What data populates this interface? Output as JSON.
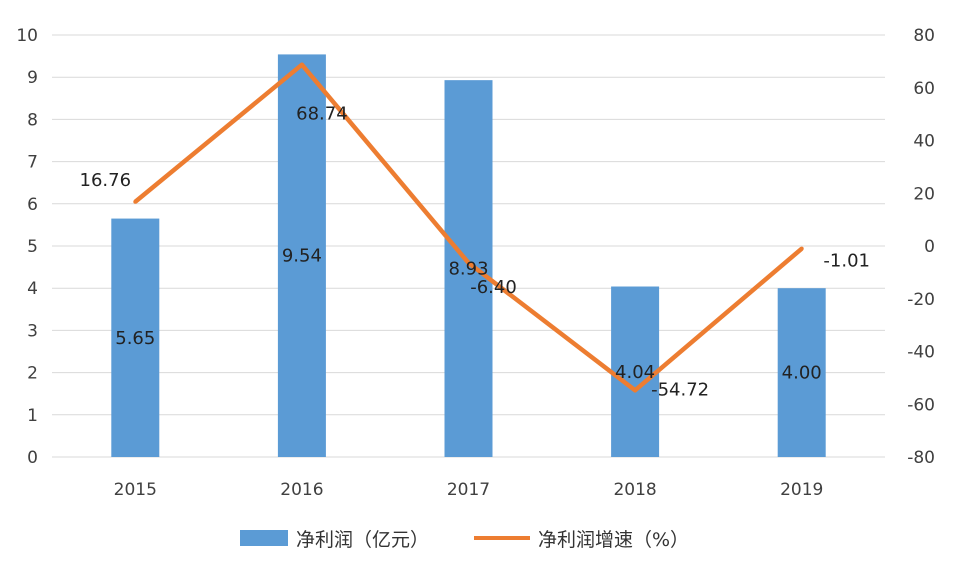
{
  "chart_data": {
    "type": "bar+line",
    "categories": [
      "2015",
      "2016",
      "2017",
      "2018",
      "2019"
    ],
    "series": [
      {
        "name": "净利润（亿元）",
        "type": "bar",
        "axis": "left",
        "color": "#5B9BD5",
        "values": [
          5.65,
          9.54,
          8.93,
          4.04,
          4.0
        ],
        "labels": [
          "5.65",
          "9.54",
          "8.93",
          "4.04",
          "4.00"
        ]
      },
      {
        "name": "净利润增速（%）",
        "type": "line",
        "axis": "right",
        "color": "#ED7D31",
        "values": [
          16.76,
          68.74,
          -6.4,
          -54.72,
          -1.01
        ],
        "labels": [
          "16.76",
          "68.74",
          "-6.40",
          "-54.72",
          "-1.01"
        ]
      }
    ],
    "y_left": {
      "min": 0,
      "max": 10,
      "ticks": [
        "0",
        "1",
        "2",
        "3",
        "4",
        "5",
        "6",
        "7",
        "8",
        "9",
        "10"
      ]
    },
    "y_right": {
      "min": -80,
      "max": 80,
      "ticks": [
        "-80",
        "-60",
        "-40",
        "-20",
        "0",
        "20",
        "40",
        "60",
        "80"
      ]
    },
    "grid": true,
    "legend_position": "bottom"
  }
}
